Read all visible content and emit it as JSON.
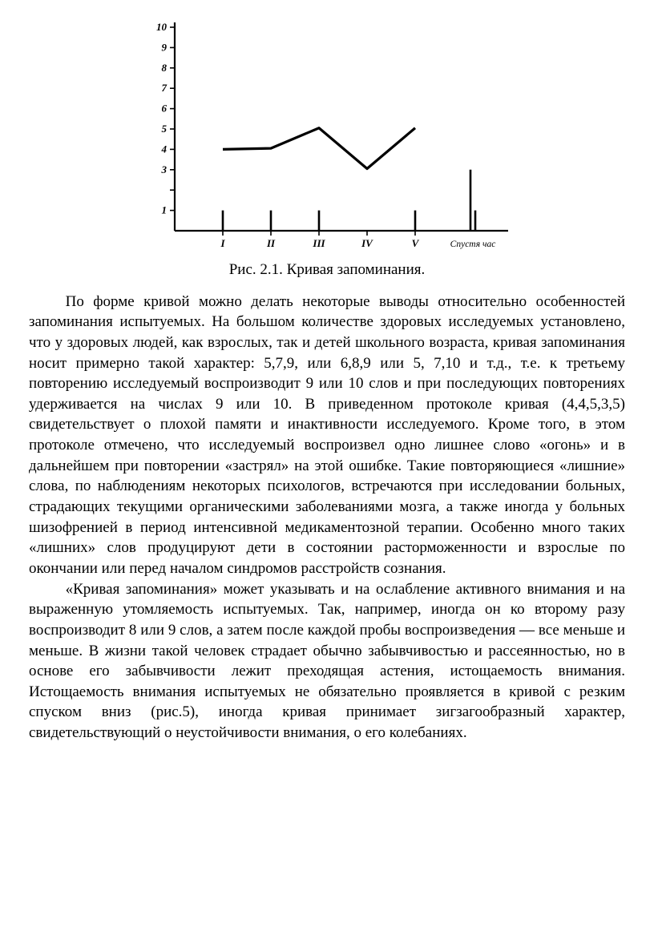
{
  "figure": {
    "caption": "Рис. 2.1. Кривая запоминания.",
    "y_labels": [
      "10",
      "9",
      "8",
      "7",
      "6",
      "5",
      "4",
      "3",
      "",
      "1"
    ],
    "y_values": [
      10,
      9,
      8,
      7,
      6,
      5,
      4,
      3,
      2,
      1
    ],
    "x_labels": [
      "I",
      "II",
      "III",
      "IV",
      "V"
    ],
    "x_extra_label": "Спустя час",
    "ylim": [
      0,
      10
    ],
    "curve": [
      {
        "x": 1,
        "y": 4.0
      },
      {
        "x": 2,
        "y": 4.05
      },
      {
        "x": 3,
        "y": 5.05
      },
      {
        "x": 4,
        "y": 3.05
      },
      {
        "x": 5,
        "y": 5.05
      }
    ],
    "tick_markers": [
      {
        "x": 1,
        "y": 1
      },
      {
        "x": 2,
        "y": 1
      },
      {
        "x": 3,
        "y": 1
      },
      {
        "x": 5,
        "y": 1
      }
    ],
    "extra_markers": [
      {
        "x": 6.15,
        "y": 3.0
      },
      {
        "x": 6.25,
        "y": 1.0
      }
    ],
    "stroke_color": "#000000",
    "axis_width": 2.2,
    "curve_width": 3.2,
    "marker_width": 2.6,
    "font_family": "Times New Roman",
    "axis_label_fontsize": 13,
    "axis_label_weight": "bold",
    "axis_label_style": "italic"
  },
  "paragraphs": [
    "По форме кривой можно делать некоторые выводы относительно особенностей запоминания испытуемых. На большом количестве здоровых исследуемых установлено, что у здоровых людей, как взрослых, так и детей школьного возраста, кривая запоминания носит примерно такой характер: 5,7,9, или 6,8,9 или 5, 7,10 и т.д., т.е. к третьему повторению исследуемый воспроизводит 9 или 10 слов и при последующих повторениях удерживается на числах 9 или 10. В приведенном протоколе кривая (4,4,5,3,5) свидетельствует о плохой памяти и инактивности исследуемого. Кроме того, в этом протоколе отмечено, что исследуемый воспроизвел одно лишнее слово «огонь» и в дальнейшем при повторении «застрял» на этой ошибке. Такие повторяющиеся «лишние» слова, по наблюдениям некоторых психологов, встречаются при исследовании больных, страдающих текущими органическими заболеваниями мозга, а также иногда у больных шизофренией в период интенсивной медикаментозной терапии. Особенно много таких «лишних» слов продуцируют дети в состоянии расторможенности и взрослые по окончании или перед началом синдромов расстройств сознания.",
    "«Кривая запоминания» может указывать и на ослабление активного внимания и на выраженную утомляемость испытуемых. Так, например, иногда он ко второму разу воспроизводит 8 или 9 слов, а затем после каждой пробы воспроизведения — все меньше и меньше. В жизни такой человек страдает обычно забывчивостью и рассеянностью, но в основе его забывчивости лежит преходящая астения, истощаемость внимания. Истощаемость внимания испытуемых не обязательно проявляется в кривой с резким спуском вниз (рис.5), иногда кривая принимает зигзагообразный характер, свидетельствующий о неустойчивости внимания, о его колебаниях."
  ]
}
